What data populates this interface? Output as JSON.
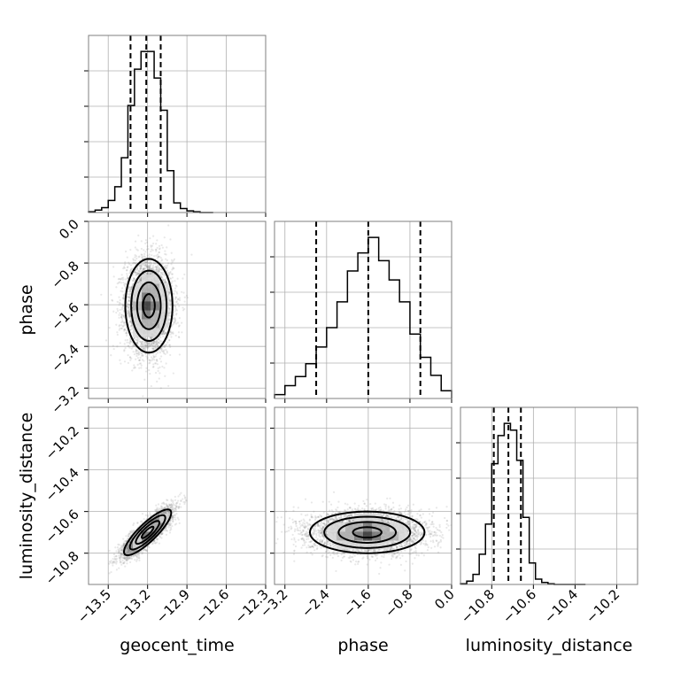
{
  "chart_data": {
    "type": "corner",
    "parameters": [
      {
        "name": "geocent_time",
        "label": "geocent_time",
        "range": [
          -13.65,
          -12.3
        ],
        "ticks": [
          -13.5,
          -13.2,
          -12.9,
          -12.6,
          -12.3
        ],
        "tick_labels": [
          "−13.5",
          "−13.2",
          "−12.9",
          "−12.6",
          "−12.3"
        ],
        "quantiles": [
          -13.33,
          -13.21,
          -13.1
        ],
        "histogram": {
          "bin_edges": [
            -13.65,
            -13.6,
            -13.55,
            -13.5,
            -13.45,
            -13.4,
            -13.35,
            -13.3,
            -13.25,
            -13.2,
            -13.15,
            -13.1,
            -13.05,
            -13.0,
            -12.95,
            -12.9,
            -12.85,
            -12.8,
            -12.75,
            -12.7
          ],
          "counts": [
            1,
            3,
            6,
            15,
            32,
            68,
            133,
            178,
            200,
            200,
            167,
            127,
            52,
            12,
            5,
            2,
            1,
            0,
            0
          ]
        }
      },
      {
        "name": "phase",
        "label": "phase",
        "range": [
          -3.4,
          0.0
        ],
        "ticks": [
          -3.2,
          -2.4,
          -1.6,
          -0.8,
          0.0
        ],
        "tick_labels": [
          "−3.2",
          "−2.4",
          "−1.6",
          "−0.8",
          "0.0"
        ],
        "quantiles": [
          -2.6,
          -1.6,
          -0.6
        ],
        "histogram": {
          "bin_edges": [
            -3.4,
            -3.2,
            -3.0,
            -2.8,
            -2.6,
            -2.4,
            -2.2,
            -2.0,
            -1.8,
            -1.6,
            -1.4,
            -1.2,
            -1.0,
            -0.8,
            -0.6,
            -0.4,
            -0.2,
            0.0
          ],
          "counts": [
            3,
            10,
            17,
            27,
            40,
            55,
            75,
            99,
            113,
            125,
            107,
            92,
            75,
            50,
            32,
            18,
            6
          ]
        }
      },
      {
        "name": "luminosity_distance",
        "label": "luminosity_distance",
        "range": [
          -10.95,
          -10.1
        ],
        "ticks": [
          -10.8,
          -10.6,
          -10.4,
          -10.2
        ],
        "tick_labels": [
          "−10.8",
          "−10.6",
          "−10.4",
          "−10.2"
        ],
        "quantiles": [
          -10.79,
          -10.72,
          -10.66
        ],
        "histogram": {
          "bin_edges": [
            -10.95,
            -10.92,
            -10.89,
            -10.86,
            -10.83,
            -10.8,
            -10.77,
            -10.74,
            -10.71,
            -10.68,
            -10.65,
            -10.62,
            -10.59,
            -10.56,
            -10.53,
            -10.5,
            -10.47,
            -10.44,
            -10.41,
            -10.38,
            -10.35
          ],
          "counts": [
            1,
            5,
            15,
            45,
            90,
            180,
            222,
            240,
            230,
            185,
            100,
            32,
            8,
            3,
            1,
            0,
            0,
            0,
            0,
            0
          ]
        }
      }
    ],
    "pair_plots": [
      {
        "x": "geocent_time",
        "y": "phase",
        "center": [
          -13.19,
          -1.62
        ],
        "sigma": [
          0.09,
          0.45
        ],
        "correlation": 0.0,
        "levels_sigma": [
          0.5,
          1.0,
          1.5,
          2.0
        ],
        "samples": 4000
      },
      {
        "x": "geocent_time",
        "y": "luminosity_distance",
        "center": [
          -13.2,
          -10.7
        ],
        "sigma": [
          0.09,
          0.055
        ],
        "correlation": 0.85,
        "levels_sigma": [
          0.5,
          1.0,
          1.5,
          2.0
        ],
        "samples": 4000
      },
      {
        "x": "phase",
        "y": "luminosity_distance",
        "center": [
          -1.62,
          -10.7
        ],
        "sigma": [
          0.55,
          0.05
        ],
        "correlation": 0.0,
        "levels_sigma": [
          0.5,
          1.0,
          1.5,
          2.0
        ],
        "samples": 4000
      }
    ],
    "grid": true,
    "colors": {
      "points": "#7f7f7f",
      "lines": "#000000",
      "frame": "#7f7f7f"
    }
  }
}
